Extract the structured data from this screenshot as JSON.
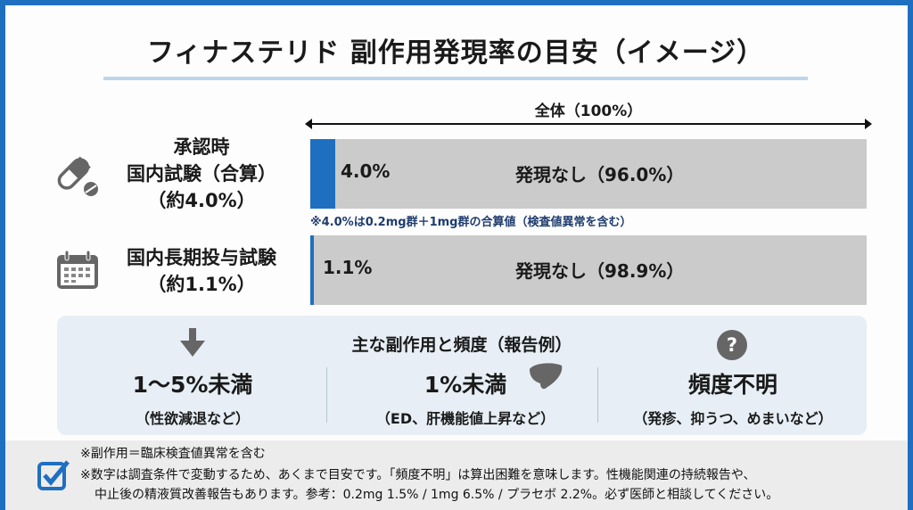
{
  "title": "フィナステリド 副作用発現率の目安（イメージ）",
  "axis_label": "全体（100%）",
  "rows": [
    {
      "label_lines": [
        "承認時",
        "国内試験（合算）",
        "（約4.0%）"
      ],
      "icon": "pill-capsule-icon",
      "value_percent": 4.0,
      "value_label": "4.0%",
      "none_label": "発現なし（96.0%）"
    },
    {
      "label_lines": [
        "国内長期投与試験",
        "（約1.1%）"
      ],
      "icon": "calendar-icon",
      "value_percent": 1.1,
      "value_label": "1.1%",
      "none_label": "発現なし（98.9%）"
    }
  ],
  "row1_note": "※4.0%は0.2mg群＋1mg群の合算値（検査値異常を含む）",
  "colors": {
    "accent": "#1f6fc0",
    "bar_bg": "#cbcbcb",
    "panel_bg": "#e7eef5"
  },
  "panel": {
    "title": "主な副作用と頻度（報告例）",
    "columns": [
      {
        "icon": "arrow-down-icon",
        "big": "1〜5%未満",
        "small": "（性欲減退など）"
      },
      {
        "icon": "liver-icon",
        "big": "1%未満",
        "small": "（ED、肝機能値上昇など）"
      },
      {
        "icon": "question-circle-icon",
        "big": "頻度不明",
        "small": "（発疹、抑うつ、めまいなど）"
      }
    ]
  },
  "footer": {
    "icon": "checkbox-checked-icon",
    "lines": [
      "※副作用＝臨床検査値異常を含む",
      "※数字は調査条件で変動するため、あくまで目安です。「頻度不明」は算出困難を意味します。性機能関連の持続報告や、",
      "中止後の精液質改善報告もあります。参考：0.2mg 1.5% / 1mg 6.5% / プラセボ 2.2%。必ず医師と相談してください。"
    ]
  }
}
